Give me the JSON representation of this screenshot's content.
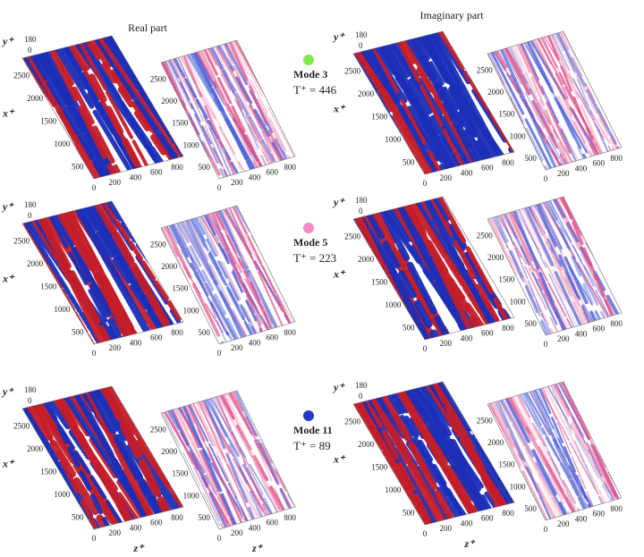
{
  "header": {
    "real_title": "Real part",
    "imag_title": "Imaginary part"
  },
  "axes": {
    "y_label": "y⁺",
    "x_label": "x⁺",
    "z_label": "z⁺",
    "y_ticks": [
      "180",
      "0"
    ],
    "x_ticks": [
      "500",
      "1000",
      "1500",
      "2000",
      "2500"
    ],
    "z_ticks": [
      "0",
      "200",
      "400",
      "600",
      "800"
    ]
  },
  "modes": [
    {
      "label": "Mode 3",
      "period": "T⁺ = 446",
      "color": "#7ee84c"
    },
    {
      "label": "Mode 5",
      "period": "T⁺ = 223",
      "color": "#f28cc4"
    },
    {
      "label": "Mode 11",
      "period": "T⁺ = 89",
      "color": "#2438c8"
    }
  ]
}
